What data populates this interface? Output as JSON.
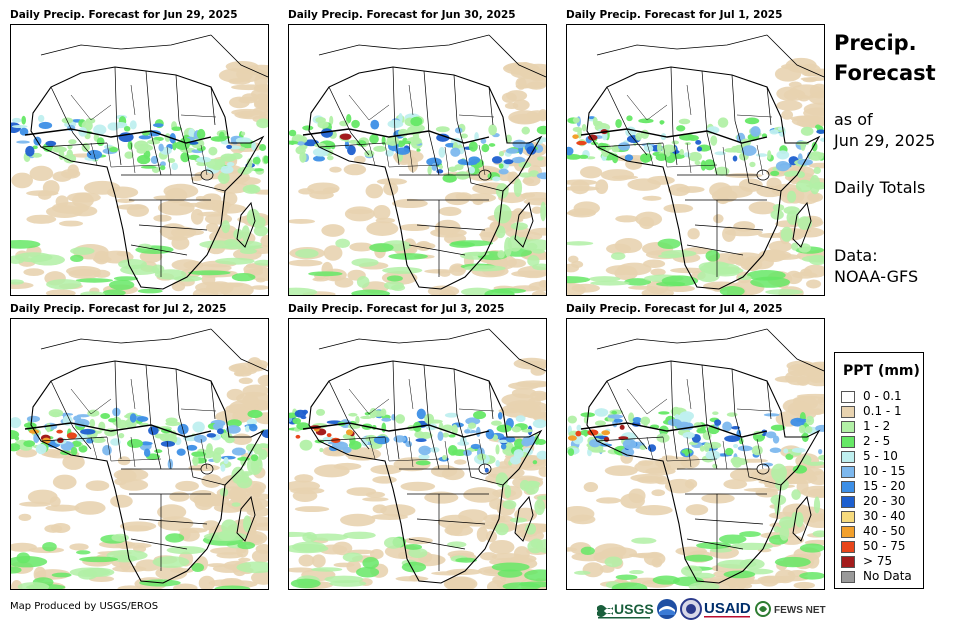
{
  "panels": [
    {
      "title": "Daily Precip. Forecast for Jun 29, 2025",
      "date": "Jun 29, 2025"
    },
    {
      "title": "Daily Precip. Forecast for Jun 30, 2025",
      "date": "Jun 30, 2025"
    },
    {
      "title": "Daily Precip. Forecast for Jul 1, 2025",
      "date": "Jul 1, 2025"
    },
    {
      "title": "Daily Precip. Forecast for Jul 2, 2025",
      "date": "Jul 2, 2025"
    },
    {
      "title": "Daily Precip. Forecast for Jul 3, 2025",
      "date": "Jul 3, 2025"
    },
    {
      "title": "Daily Precip. Forecast for Jul 4, 2025",
      "date": "Jul 4, 2025"
    }
  ],
  "sidebar": {
    "title_line1": "Precip.",
    "title_line2": "Forecast",
    "as_of_label": "as of",
    "as_of_date": "Jun 29, 2025",
    "totals_label": "Daily Totals",
    "data_label": "Data:",
    "data_source": "NOAA-GFS"
  },
  "legend": {
    "title": "PPT (mm)",
    "items": [
      {
        "label": "0 - 0.1",
        "color": "#ffffff"
      },
      {
        "label": "0.1 - 1",
        "color": "#e8d3b0"
      },
      {
        "label": "1 - 2",
        "color": "#b2f0a6"
      },
      {
        "label": "2 - 5",
        "color": "#66e866"
      },
      {
        "label": "5 - 10",
        "color": "#bfefef"
      },
      {
        "label": "10 - 15",
        "color": "#7db8ee"
      },
      {
        "label": "15 - 20",
        "color": "#3d8fe6"
      },
      {
        "label": "20 - 30",
        "color": "#1d5fcf"
      },
      {
        "label": "30 - 40",
        "color": "#f6da7d"
      },
      {
        "label": "40 - 50",
        "color": "#f2a02c"
      },
      {
        "label": "50 - 75",
        "color": "#e8461b"
      },
      {
        "label": "> 75",
        "color": "#a31c1c"
      },
      {
        "label": "No Data",
        "color": "#9a9a9a"
      }
    ]
  },
  "footer": {
    "credit": "Map Produced by USGS/EROS",
    "logos": {
      "usgs": "USGS",
      "usaid": "USAID",
      "fewsnet": "FEWS NET"
    }
  }
}
